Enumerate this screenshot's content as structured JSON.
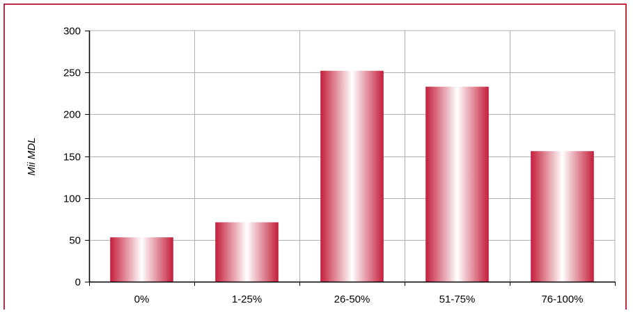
{
  "chart_data": {
    "type": "bar",
    "title": "",
    "xlabel": "",
    "ylabel": "Mii MDL",
    "categories": [
      "0%",
      "1-25%",
      "26-50%",
      "51-75%",
      "76-100%"
    ],
    "values": [
      53,
      71,
      252,
      233,
      156
    ],
    "ylim": [
      0,
      300
    ],
    "yticks": [
      "0",
      "50",
      "100",
      "150",
      "200",
      "250",
      "300"
    ],
    "grid": true,
    "legend": "none",
    "colors": {
      "bar_edge": "#c41e3a",
      "bar_center": "#ffffff",
      "frame": "#c0293f",
      "grid": "#b0b0b0"
    }
  }
}
